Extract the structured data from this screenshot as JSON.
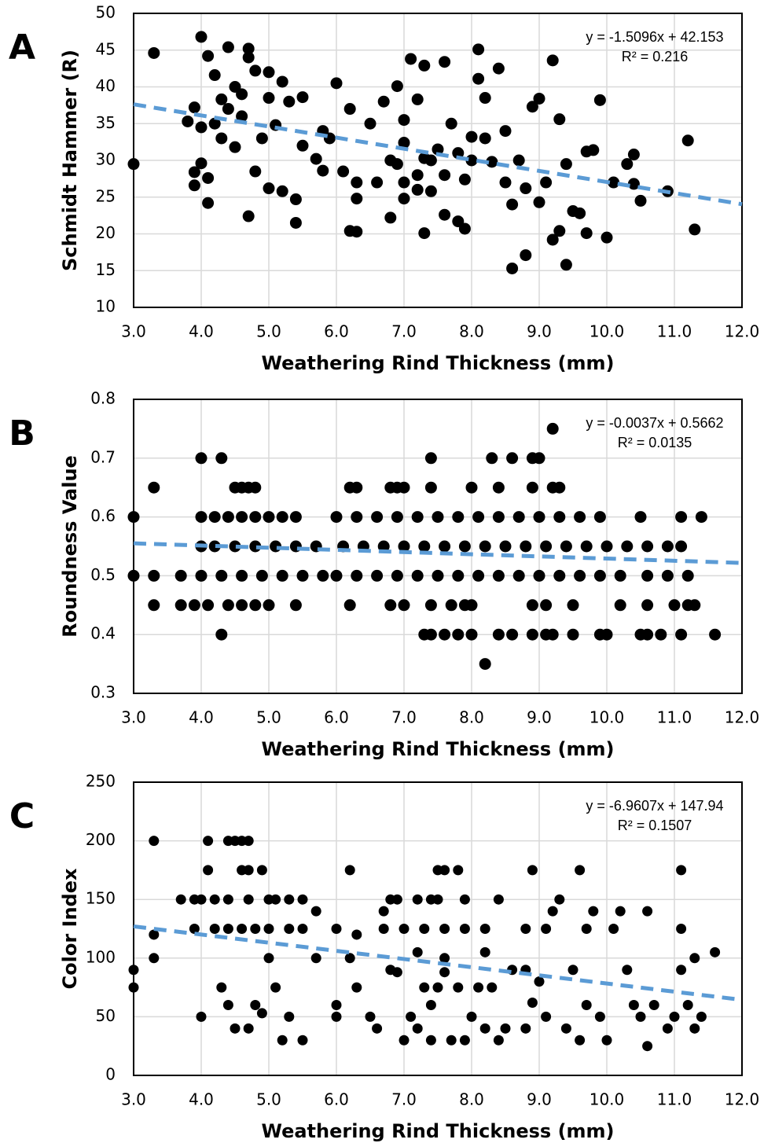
{
  "chart_data": [
    {
      "type": "scatter",
      "panel_label": "A",
      "xlabel": "Weathering Rind Thickness (mm)",
      "ylabel": "Schmidt Hammer (R)",
      "xlim": [
        3,
        12
      ],
      "xticks": [
        {
          "value": 3,
          "label": "3.0"
        },
        {
          "value": 4,
          "label": "4.0"
        },
        {
          "value": 5,
          "label": "5.0"
        },
        {
          "value": 6,
          "label": "6.0"
        },
        {
          "value": 7,
          "label": "7.0"
        },
        {
          "value": 8,
          "label": "8.0"
        },
        {
          "value": 9,
          "label": "9.0"
        },
        {
          "value": 10,
          "label": "10.0"
        },
        {
          "value": 11,
          "label": "11.0"
        },
        {
          "value": 12,
          "label": "12.0"
        }
      ],
      "ylim": [
        10,
        50
      ],
      "yticks": [
        10,
        15,
        20,
        25,
        30,
        35,
        40,
        45,
        50
      ],
      "grid": true,
      "series": [
        {
          "color": "#000000",
          "x": [
            3.0,
            3.3,
            4.0,
            4.1,
            4.4,
            3.9,
            3.8,
            4.0,
            3.9,
            3.9,
            4.0,
            4.1,
            4.1,
            4.2,
            4.3,
            4.3,
            4.5,
            4.5,
            4.6,
            4.7,
            4.7,
            4.8,
            4.7,
            4.8,
            4.9,
            5.0,
            5.0,
            5.0,
            5.2,
            5.1,
            5.3,
            5.2,
            5.4,
            5.4,
            5.5,
            5.5,
            5.7,
            5.8,
            5.8,
            6.0,
            6.1,
            6.2,
            6.2,
            6.3,
            6.3,
            6.3,
            6.5,
            6.7,
            6.8,
            6.9,
            6.9,
            7.0,
            7.0,
            7.0,
            7.0,
            7.1,
            7.2,
            7.2,
            7.3,
            7.3,
            7.3,
            7.4,
            7.5,
            7.6,
            7.6,
            7.7,
            7.8,
            7.9,
            7.9,
            8.0,
            8.1,
            8.1,
            8.2,
            8.3,
            8.4,
            8.5,
            8.6,
            8.6,
            8.7,
            8.8,
            8.8,
            8.9,
            9.0,
            9.0,
            9.2,
            9.3,
            9.3,
            9.4,
            9.2,
            9.4,
            9.5,
            9.6,
            9.7,
            9.7,
            9.8,
            9.9,
            10.0,
            10.1,
            10.3,
            10.4,
            10.4,
            10.5,
            10.9,
            11.2,
            11.3,
            4.4,
            4.6,
            4.2,
            7.4,
            7.6,
            8.0,
            8.2,
            7.2,
            6.8,
            9.1,
            8.5,
            6.6,
            7.8,
            5.9
          ],
          "values": [
            29.5,
            44.6,
            46.8,
            44.2,
            45.4,
            37.2,
            35.3,
            34.5,
            28.4,
            26.6,
            29.6,
            24.2,
            27.6,
            41.6,
            38.3,
            33,
            31.8,
            40,
            36,
            45.2,
            44,
            42.2,
            22.4,
            28.5,
            33,
            42,
            38.5,
            26.2,
            40.7,
            34.8,
            38,
            25.8,
            24.7,
            21.5,
            38.6,
            32,
            30.2,
            28.6,
            34,
            40.5,
            28.5,
            37,
            20.4,
            24.8,
            20.3,
            27,
            35,
            38,
            22.2,
            40.1,
            29.5,
            35.5,
            24.8,
            27,
            32.4,
            43.8,
            28,
            38.3,
            20.1,
            30.3,
            42.9,
            25.8,
            31.5,
            43.4,
            22.6,
            35,
            21.7,
            20.7,
            27.4,
            33.2,
            41.1,
            45.1,
            38.5,
            29.8,
            42.5,
            34,
            24,
            15.3,
            30,
            26.2,
            17.1,
            37.3,
            38.4,
            24.3,
            43.6,
            35.6,
            20.4,
            15.8,
            19.2,
            29.5,
            23.1,
            22.8,
            31.2,
            20.1,
            31.4,
            38.2,
            19.5,
            27,
            29.5,
            26.8,
            30.8,
            24.5,
            25.8,
            32.7,
            20.6,
            37,
            39,
            35,
            30,
            28,
            30,
            33,
            26,
            30,
            27,
            27,
            27,
            31,
            33
          ]
        }
      ],
      "trendline": {
        "slope": -1.5096,
        "intercept": 42.153,
        "color": "#5b9bd5",
        "equation": "y = -1.5096x + 42.153",
        "r_squared": "R² = 0.216"
      }
    },
    {
      "type": "scatter",
      "panel_label": "B",
      "xlabel": "Weathering Rind Thickness (mm)",
      "ylabel": "Roundness Value",
      "xlim": [
        3,
        12
      ],
      "xticks": [
        {
          "value": 3,
          "label": "3.0"
        },
        {
          "value": 4,
          "label": "4.0"
        },
        {
          "value": 5,
          "label": "5.0"
        },
        {
          "value": 6,
          "label": "6.0"
        },
        {
          "value": 7,
          "label": "7.0"
        },
        {
          "value": 8,
          "label": "8.0"
        },
        {
          "value": 9,
          "label": "9.0"
        },
        {
          "value": 10,
          "label": "10.0"
        },
        {
          "value": 11,
          "label": "11.0"
        },
        {
          "value": 12,
          "label": "12.0"
        }
      ],
      "ylim": [
        0.3,
        0.8
      ],
      "yticks": [
        0.3,
        0.4,
        0.5,
        0.6,
        0.7,
        0.8
      ],
      "grid": true,
      "series": [
        {
          "color": "#000000",
          "x": [
            9.2,
            4.0,
            4.3,
            7.4,
            8.3,
            8.6,
            8.9,
            9.0,
            3.3,
            4.5,
            4.6,
            4.7,
            4.8,
            6.2,
            6.3,
            6.8,
            6.9,
            7.0,
            7.4,
            8.0,
            8.4,
            8.9,
            9.2,
            9.3,
            3.0,
            4.0,
            4.2,
            4.4,
            4.6,
            4.8,
            5.0,
            5.2,
            5.4,
            6.0,
            6.3,
            6.6,
            6.9,
            7.2,
            7.5,
            7.8,
            8.1,
            8.4,
            8.7,
            9.0,
            9.3,
            9.6,
            9.9,
            10.5,
            11.1,
            11.4,
            4.0,
            4.2,
            4.5,
            4.8,
            5.1,
            5.4,
            5.7,
            6.1,
            6.4,
            6.7,
            7.0,
            7.3,
            7.6,
            7.9,
            8.2,
            8.5,
            8.8,
            9.1,
            9.4,
            9.7,
            10.0,
            10.3,
            10.6,
            10.9,
            11.1,
            3.0,
            3.3,
            3.7,
            4.0,
            4.3,
            4.6,
            4.9,
            5.2,
            5.5,
            5.8,
            6.0,
            6.3,
            6.6,
            6.9,
            7.2,
            7.5,
            7.8,
            8.1,
            8.4,
            8.7,
            9.0,
            9.3,
            9.6,
            9.9,
            10.2,
            10.6,
            10.9,
            11.2,
            3.3,
            3.7,
            3.9,
            4.1,
            4.4,
            4.6,
            4.8,
            5.0,
            5.4,
            6.2,
            6.8,
            7.0,
            7.4,
            7.7,
            7.9,
            8.0,
            8.9,
            9.1,
            9.5,
            10.2,
            10.6,
            11.0,
            11.2,
            11.3,
            4.3,
            7.3,
            7.4,
            7.6,
            7.8,
            8.0,
            8.4,
            8.6,
            8.9,
            9.1,
            9.2,
            9.5,
            9.9,
            10.0,
            10.5,
            10.6,
            10.8,
            11.1,
            11.6,
            8.2
          ],
          "values": [
            0.75,
            0.7,
            0.7,
            0.7,
            0.7,
            0.7,
            0.7,
            0.7,
            0.65,
            0.65,
            0.65,
            0.65,
            0.65,
            0.65,
            0.65,
            0.65,
            0.65,
            0.65,
            0.65,
            0.65,
            0.65,
            0.65,
            0.65,
            0.65,
            0.6,
            0.6,
            0.6,
            0.6,
            0.6,
            0.6,
            0.6,
            0.6,
            0.6,
            0.6,
            0.6,
            0.6,
            0.6,
            0.6,
            0.6,
            0.6,
            0.6,
            0.6,
            0.6,
            0.6,
            0.6,
            0.6,
            0.6,
            0.6,
            0.6,
            0.6,
            0.55,
            0.55,
            0.55,
            0.55,
            0.55,
            0.55,
            0.55,
            0.55,
            0.55,
            0.55,
            0.55,
            0.55,
            0.55,
            0.55,
            0.55,
            0.55,
            0.55,
            0.55,
            0.55,
            0.55,
            0.55,
            0.55,
            0.55,
            0.55,
            0.55,
            0.5,
            0.5,
            0.5,
            0.5,
            0.5,
            0.5,
            0.5,
            0.5,
            0.5,
            0.5,
            0.5,
            0.5,
            0.5,
            0.5,
            0.5,
            0.5,
            0.5,
            0.5,
            0.5,
            0.5,
            0.5,
            0.5,
            0.5,
            0.5,
            0.5,
            0.5,
            0.5,
            0.5,
            0.45,
            0.45,
            0.45,
            0.45,
            0.45,
            0.45,
            0.45,
            0.45,
            0.45,
            0.45,
            0.45,
            0.45,
            0.45,
            0.45,
            0.45,
            0.45,
            0.45,
            0.45,
            0.45,
            0.45,
            0.45,
            0.45,
            0.45,
            0.45,
            0.4,
            0.4,
            0.4,
            0.4,
            0.4,
            0.4,
            0.4,
            0.4,
            0.4,
            0.4,
            0.4,
            0.4,
            0.4,
            0.4,
            0.4,
            0.4,
            0.4,
            0.4,
            0.4,
            0.35
          ]
        }
      ],
      "trendline": {
        "slope": -0.0037,
        "intercept": 0.5662,
        "color": "#5b9bd5",
        "equation": "y = -0.0037x + 0.5662",
        "r_squared": "R² = 0.0135"
      }
    },
    {
      "type": "scatter",
      "panel_label": "C",
      "xlabel": "Weathering Rind Thickness (mm)",
      "ylabel": "Color Index",
      "xlim": [
        3,
        12
      ],
      "xticks": [
        {
          "value": 3,
          "label": "3.0"
        },
        {
          "value": 4,
          "label": "4.0"
        },
        {
          "value": 5,
          "label": "5.0"
        },
        {
          "value": 6,
          "label": "6.0"
        },
        {
          "value": 7,
          "label": "7.0"
        },
        {
          "value": 8,
          "label": "8.0"
        },
        {
          "value": 9,
          "label": "9.0"
        },
        {
          "value": 10,
          "label": "10.0"
        },
        {
          "value": 11,
          "label": "11.0"
        },
        {
          "value": 12,
          "label": "12.0"
        }
      ],
      "ylim": [
        0,
        250
      ],
      "yticks": [
        0,
        50,
        100,
        150,
        200,
        250
      ],
      "grid": true,
      "series": [
        {
          "color": "#000000",
          "x": [
            3.3,
            4.1,
            4.4,
            4.5,
            4.6,
            4.7,
            4.1,
            4.6,
            4.7,
            4.9,
            6.2,
            7.5,
            7.6,
            7.8,
            8.9,
            9.6,
            11.1,
            3.7,
            3.9,
            4.0,
            4.2,
            4.4,
            4.7,
            5.0,
            5.1,
            5.3,
            5.5,
            6.8,
            6.9,
            7.2,
            7.4,
            7.5,
            7.9,
            8.4,
            9.3,
            3.9,
            4.2,
            4.4,
            4.6,
            4.8,
            5.0,
            5.3,
            5.5,
            6.0,
            6.7,
            7.0,
            7.3,
            7.6,
            7.9,
            8.2,
            8.8,
            9.1,
            9.7,
            10.1,
            11.1,
            3.0,
            3.0,
            3.3,
            3.3,
            4.0,
            4.3,
            4.4,
            4.5,
            4.7,
            4.8,
            4.9,
            5.0,
            5.1,
            5.2,
            5.3,
            5.5,
            5.7,
            5.7,
            6.0,
            6.0,
            6.2,
            6.3,
            6.3,
            6.5,
            6.6,
            6.7,
            6.8,
            7.0,
            7.1,
            7.2,
            7.4,
            7.4,
            7.6,
            7.7,
            7.9,
            8.0,
            8.2,
            8.2,
            8.4,
            8.5,
            8.6,
            8.8,
            8.9,
            9.0,
            9.1,
            9.2,
            9.4,
            9.5,
            9.6,
            9.7,
            9.8,
            9.9,
            10.0,
            10.2,
            10.3,
            10.4,
            10.5,
            10.6,
            10.6,
            10.7,
            10.9,
            11.0,
            11.1,
            11.2,
            11.3,
            11.4,
            11.6,
            11.3,
            7.3,
            7.5,
            7.8,
            8.1,
            6.9,
            7.2,
            7.6,
            8.3,
            8.8
          ],
          "values": [
            200,
            200,
            200,
            200,
            200,
            200,
            175,
            175,
            175,
            175,
            175,
            175,
            175,
            175,
            175,
            175,
            175,
            150,
            150,
            150,
            150,
            150,
            150,
            150,
            150,
            150,
            150,
            150,
            150,
            150,
            150,
            150,
            150,
            150,
            150,
            125,
            125,
            125,
            125,
            125,
            125,
            125,
            125,
            125,
            125,
            125,
            125,
            125,
            125,
            125,
            125,
            125,
            125,
            125,
            125,
            90,
            75,
            120,
            100,
            50,
            75,
            60,
            40,
            40,
            60,
            53,
            100,
            75,
            30,
            50,
            30,
            140,
            100,
            60,
            50,
            100,
            120,
            75,
            50,
            40,
            140,
            90,
            30,
            50,
            40,
            60,
            30,
            100,
            30,
            30,
            50,
            105,
            40,
            30,
            40,
            90,
            40,
            62,
            80,
            50,
            140,
            40,
            90,
            30,
            60,
            140,
            50,
            30,
            140,
            90,
            60,
            50,
            25,
            140,
            60,
            40,
            50,
            90,
            60,
            40,
            50,
            105,
            100,
            75,
            75,
            75,
            75,
            88,
            105,
            88,
            75,
            90
          ]
        }
      ],
      "trendline": {
        "slope": -6.9607,
        "intercept": 147.94,
        "color": "#5b9bd5",
        "equation": "y = -6.9607x + 147.94",
        "r_squared": "R² = 0.1507"
      }
    }
  ]
}
